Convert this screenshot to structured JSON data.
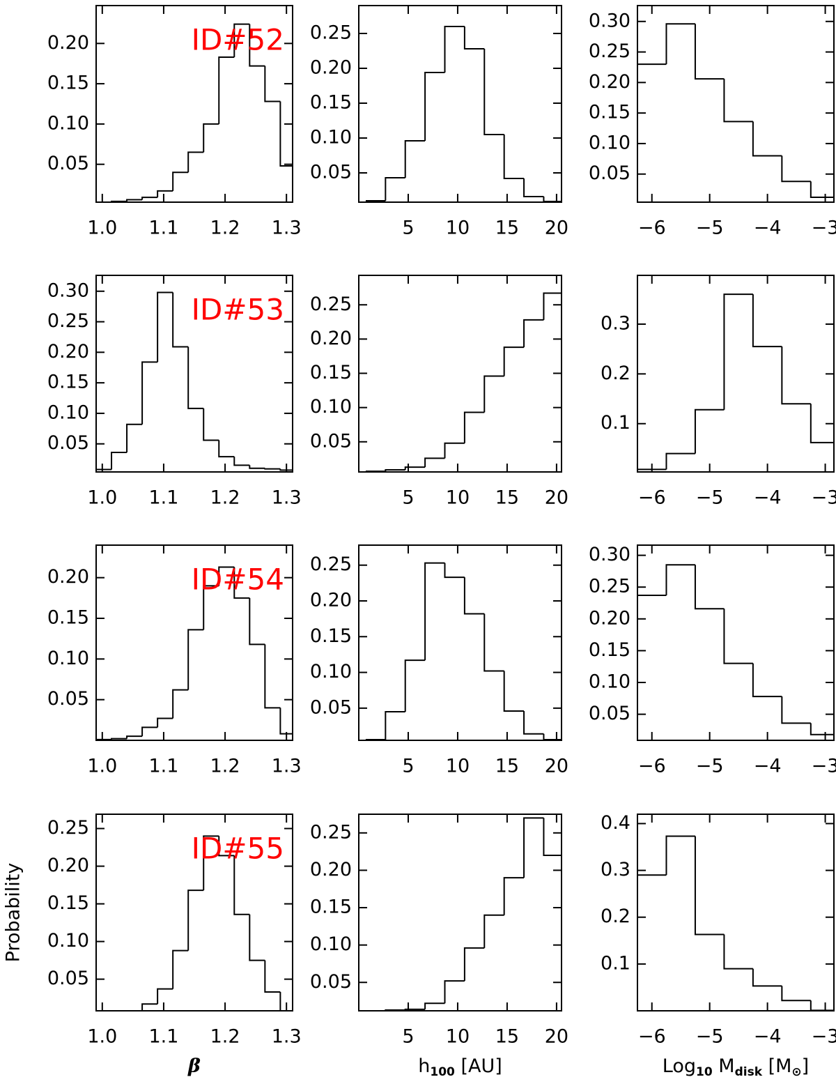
{
  "chart_data": [
    {
      "type": "histogram",
      "color": "#000000",
      "annotation": "ID#52",
      "annotation_color": "#ff0000",
      "bins": [
        0.99,
        1.015,
        1.04,
        1.065,
        1.09,
        1.115,
        1.14,
        1.165,
        1.19,
        1.215,
        1.24,
        1.265,
        1.29,
        1.315
      ],
      "values": [
        0.003,
        0.004,
        0.006,
        0.009,
        0.017,
        0.04,
        0.065,
        0.1,
        0.183,
        0.224,
        0.172,
        0.128,
        0.048
      ],
      "xlim": [
        0.99,
        1.31
      ],
      "xticks": [
        {
          "value": 1,
          "label": "1.0"
        },
        1.1,
        1.2,
        1.3
      ],
      "ylim": [
        0.003,
        0.247
      ],
      "yticks": [
        0.05,
        {
          "value": 0.1,
          "label": "0.10"
        },
        0.15,
        {
          "value": 0.2,
          "label": "0.20"
        }
      ]
    },
    {
      "type": "histogram",
      "color": "#000000",
      "bins": [
        0.7,
        2.7,
        4.7,
        6.7,
        8.7,
        10.7,
        12.7,
        14.7,
        16.7,
        18.7,
        20.7
      ],
      "values": [
        0.01,
        0.043,
        0.096,
        0.194,
        0.26,
        0.228,
        0.105,
        0.042,
        0.016,
        0.009
      ],
      "xlim": [
        0,
        20.5
      ],
      "xticks": [
        5,
        10,
        15,
        20
      ],
      "ylim": [
        0.008,
        0.29
      ],
      "yticks": [
        0.05,
        {
          "value": 0.1,
          "label": "0.10"
        },
        0.15,
        {
          "value": 0.2,
          "label": "0.20"
        },
        0.25
      ]
    },
    {
      "type": "histogram",
      "color": "#000000",
      "bins": [
        -6.25,
        -5.75,
        -5.25,
        -4.75,
        -4.25,
        -3.75,
        -3.25,
        -2.75
      ],
      "values": [
        0.23,
        0.296,
        0.206,
        0.136,
        0.08,
        0.038,
        0.012
      ],
      "xlim": [
        -6.25,
        -2.85
      ],
      "xticks": [
        {
          "value": -6,
          "label": "−6"
        },
        {
          "value": -5,
          "label": "−5"
        },
        {
          "value": -4,
          "label": "−4"
        },
        {
          "value": -3,
          "label": "−3"
        }
      ],
      "ylim": [
        0.004,
        0.326
      ],
      "yticks": [
        0.05,
        {
          "value": 0.1,
          "label": "0.10"
        },
        0.15,
        {
          "value": 0.2,
          "label": "0.20"
        },
        0.25,
        {
          "value": 0.3,
          "label": "0.30"
        }
      ]
    },
    {
      "type": "histogram",
      "color": "#000000",
      "annotation": "ID#53",
      "annotation_color": "#ff0000",
      "bins": [
        0.99,
        1.015,
        1.04,
        1.065,
        1.09,
        1.115,
        1.14,
        1.165,
        1.19,
        1.215,
        1.24,
        1.265,
        1.29,
        1.315
      ],
      "values": [
        0.008,
        0.036,
        0.082,
        0.184,
        0.298,
        0.209,
        0.108,
        0.056,
        0.029,
        0.015,
        0.01,
        0.009,
        0.007
      ],
      "xlim": [
        0.99,
        1.31
      ],
      "xticks": [
        {
          "value": 1,
          "label": "1.0"
        },
        1.1,
        1.2,
        1.3
      ],
      "ylim": [
        0.004,
        0.326
      ],
      "yticks": [
        0.05,
        {
          "value": 0.1,
          "label": "0.10"
        },
        0.15,
        {
          "value": 0.2,
          "label": "0.20"
        },
        0.25,
        {
          "value": 0.3,
          "label": "0.30"
        }
      ]
    },
    {
      "type": "histogram",
      "color": "#000000",
      "bins": [
        0.7,
        2.7,
        4.7,
        6.7,
        8.7,
        10.7,
        12.7,
        14.7,
        16.7,
        18.7,
        20.7
      ],
      "values": [
        0.007,
        0.009,
        0.013,
        0.026,
        0.048,
        0.093,
        0.146,
        0.188,
        0.228,
        0.267
      ],
      "xlim": [
        0,
        20.5
      ],
      "xticks": [
        5,
        10,
        15,
        20
      ],
      "ylim": [
        0.006,
        0.293
      ],
      "yticks": [
        0.05,
        {
          "value": 0.1,
          "label": "0.10"
        },
        0.15,
        {
          "value": 0.2,
          "label": "0.20"
        },
        0.25
      ]
    },
    {
      "type": "histogram",
      "color": "#000000",
      "bins": [
        -6.25,
        -5.75,
        -5.25,
        -4.75,
        -4.25,
        -3.75,
        -3.25,
        -2.75
      ],
      "values": [
        0.008,
        0.04,
        0.128,
        0.36,
        0.255,
        0.14,
        0.062
      ],
      "xlim": [
        -6.25,
        -2.85
      ],
      "xticks": [
        {
          "value": -6,
          "label": "−6"
        },
        {
          "value": -5,
          "label": "−5"
        },
        {
          "value": -4,
          "label": "−4"
        },
        {
          "value": -3,
          "label": "−3"
        }
      ],
      "ylim": [
        0.003,
        0.398
      ],
      "yticks": [
        0.1,
        0.2,
        0.3
      ]
    },
    {
      "type": "histogram",
      "color": "#000000",
      "annotation": "ID#54",
      "annotation_color": "#ff0000",
      "bins": [
        0.99,
        1.015,
        1.04,
        1.065,
        1.09,
        1.115,
        1.14,
        1.165,
        1.19,
        1.215,
        1.24,
        1.265,
        1.29,
        1.315
      ],
      "values": [
        0.001,
        0.002,
        0.005,
        0.016,
        0.027,
        0.062,
        0.136,
        0.19,
        0.213,
        0.175,
        0.118,
        0.04,
        0.008
      ],
      "xlim": [
        0.99,
        1.31
      ],
      "xticks": [
        {
          "value": 1,
          "label": "1.0"
        },
        1.1,
        1.2,
        1.3
      ],
      "ylim": [
        0,
        0.24
      ],
      "yticks": [
        0.05,
        {
          "value": 0.1,
          "label": "0.10"
        },
        0.15,
        {
          "value": 0.2,
          "label": "0.20"
        }
      ]
    },
    {
      "type": "histogram",
      "color": "#000000",
      "bins": [
        0.7,
        2.7,
        4.7,
        6.7,
        8.7,
        10.7,
        12.7,
        14.7,
        16.7,
        18.7,
        20.7
      ],
      "values": [
        0.006,
        0.045,
        0.117,
        0.253,
        0.233,
        0.182,
        0.102,
        0.046,
        0.014,
        0.006
      ],
      "xlim": [
        0,
        20.5
      ],
      "xticks": [
        5,
        10,
        15,
        20
      ],
      "ylim": [
        0.005,
        0.278
      ],
      "yticks": [
        0.05,
        {
          "value": 0.1,
          "label": "0.10"
        },
        0.15,
        {
          "value": 0.2,
          "label": "0.20"
        },
        0.25
      ]
    },
    {
      "type": "histogram",
      "color": "#000000",
      "bins": [
        -6.25,
        -5.75,
        -5.25,
        -4.75,
        -4.25,
        -3.75,
        -3.25,
        -2.75
      ],
      "values": [
        0.237,
        0.285,
        0.216,
        0.13,
        0.078,
        0.036,
        0.018
      ],
      "xlim": [
        -6.25,
        -2.85
      ],
      "xticks": [
        {
          "value": -6,
          "label": "−6"
        },
        {
          "value": -5,
          "label": "−5"
        },
        {
          "value": -4,
          "label": "−4"
        },
        {
          "value": -3,
          "label": "−3"
        }
      ],
      "ylim": [
        0.009,
        0.316
      ],
      "yticks": [
        0.05,
        {
          "value": 0.1,
          "label": "0.10"
        },
        0.15,
        {
          "value": 0.2,
          "label": "0.20"
        },
        0.25,
        {
          "value": 0.3,
          "label": "0.30"
        }
      ]
    },
    {
      "type": "histogram",
      "color": "#000000",
      "annotation": "ID#55",
      "annotation_color": "#ff0000",
      "ylabel": "Probability",
      "xlabel": [
        "β"
      ],
      "bins": [
        0.99,
        1.015,
        1.04,
        1.065,
        1.09,
        1.115,
        1.14,
        1.165,
        1.19,
        1.215,
        1.24,
        1.265,
        1.29,
        1.315
      ],
      "values": [
        0.003,
        0.005,
        0.008,
        0.017,
        0.037,
        0.088,
        0.168,
        0.24,
        0.214,
        0.136,
        0.075,
        0.033,
        0.002
      ],
      "xlim": [
        0.99,
        1.31
      ],
      "xticks": [
        {
          "value": 1,
          "label": "1.0"
        },
        1.1,
        1.2,
        1.3
      ],
      "ylim": [
        0.008,
        0.269
      ],
      "yticks": [
        0.05,
        {
          "value": 0.1,
          "label": "0.10"
        },
        0.15,
        {
          "value": 0.2,
          "label": "0.20"
        },
        0.25
      ]
    },
    {
      "type": "histogram",
      "color": "#000000",
      "xlabel": [
        "h",
        "100",
        " [AU]"
      ],
      "bins": [
        0.7,
        2.7,
        4.7,
        6.7,
        8.7,
        10.7,
        12.7,
        14.7,
        16.7,
        18.7,
        20.7
      ],
      "values": [
        0.012,
        0.013,
        0.014,
        0.022,
        0.052,
        0.096,
        0.14,
        0.19,
        0.27,
        0.22
      ],
      "xlim": [
        0,
        20.5
      ],
      "xticks": [
        5,
        10,
        15,
        20
      ],
      "ylim": [
        0.012,
        0.275
      ],
      "yticks": [
        0.05,
        {
          "value": 0.1,
          "label": "0.10"
        },
        0.15,
        {
          "value": 0.2,
          "label": "0.20"
        },
        0.25
      ]
    },
    {
      "type": "histogram",
      "color": "#000000",
      "xlabel": [
        "Log",
        "10",
        " M",
        "disk",
        " [M",
        "⊙",
        "]"
      ],
      "bins": [
        -6.25,
        -5.75,
        -5.25,
        -4.75,
        -4.25,
        -3.75,
        -3.25,
        -2.75
      ],
      "values": [
        0.29,
        0.373,
        0.163,
        0.09,
        0.053,
        0.022,
        0.001
      ],
      "xlim": [
        -6.25,
        -2.85
      ],
      "xticks": [
        {
          "value": -6,
          "label": "−6"
        },
        {
          "value": -5,
          "label": "−5"
        },
        {
          "value": -4,
          "label": "−4"
        },
        {
          "value": -3,
          "label": "−3"
        }
      ],
      "ylim": [
        0,
        0.42
      ],
      "yticks": [
        0.1,
        0.2,
        0.3,
        0.4
      ]
    }
  ]
}
